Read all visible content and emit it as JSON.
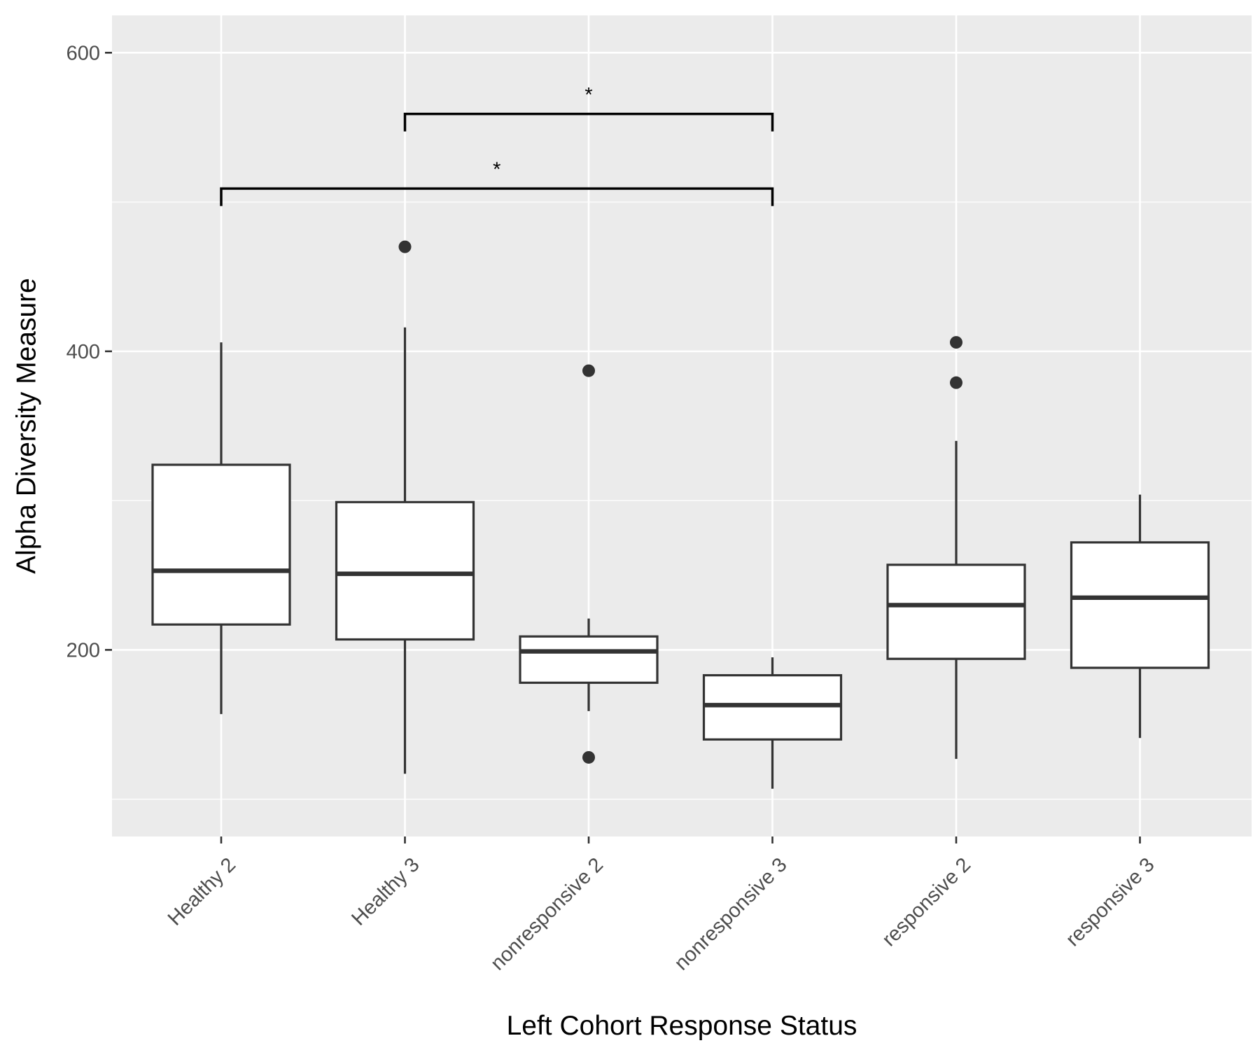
{
  "chart_data": {
    "type": "boxplot",
    "xlabel": "Left Cohort Response Status",
    "ylabel": "Alpha Diversity Measure",
    "categories": [
      "Healthy 2",
      "Healthy 3",
      "nonresponsive 2",
      "nonresponsive 3",
      "responsive 2",
      "responsive 3"
    ],
    "ylim": [
      75,
      625
    ],
    "yticks": [
      200,
      400,
      600
    ],
    "yticks_minor": [
      100,
      300,
      500
    ],
    "grid": true,
    "boxes": [
      {
        "category": "Healthy 2",
        "lower_whisker": 157,
        "q1": 217,
        "median": 253,
        "q3": 324,
        "upper_whisker": 406,
        "outliers": []
      },
      {
        "category": "Healthy 3",
        "lower_whisker": 117,
        "q1": 207,
        "median": 251,
        "q3": 299,
        "upper_whisker": 416,
        "outliers": [
          470
        ]
      },
      {
        "category": "nonresponsive 2",
        "lower_whisker": 159,
        "q1": 178,
        "median": 199,
        "q3": 209,
        "upper_whisker": 221,
        "outliers": [
          387,
          128
        ]
      },
      {
        "category": "nonresponsive 3",
        "lower_whisker": 107,
        "q1": 140,
        "median": 163,
        "q3": 183,
        "upper_whisker": 195,
        "outliers": []
      },
      {
        "category": "responsive 2",
        "lower_whisker": 127,
        "q1": 194,
        "median": 230,
        "q3": 257,
        "upper_whisker": 340,
        "outliers": [
          406,
          379
        ]
      },
      {
        "category": "responsive 3",
        "lower_whisker": 141,
        "q1": 188,
        "median": 235,
        "q3": 272,
        "upper_whisker": 304,
        "outliers": []
      }
    ],
    "significance": [
      {
        "from": "Healthy 2",
        "to": "nonresponsive 3",
        "y": 509,
        "label": "*"
      },
      {
        "from": "Healthy 3",
        "to": "nonresponsive 3",
        "y": 559,
        "label": "*"
      }
    ]
  }
}
